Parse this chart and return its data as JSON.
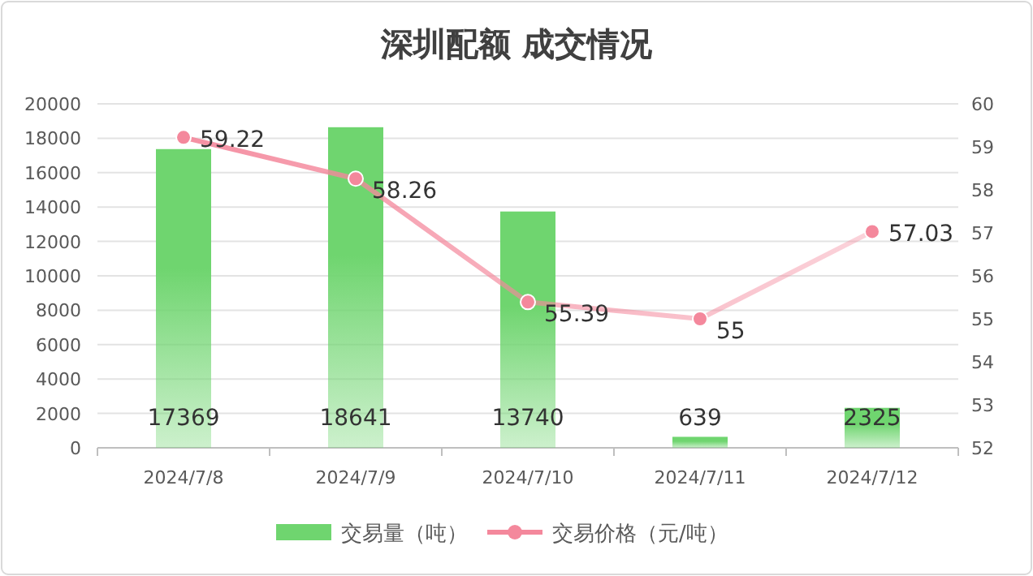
{
  "chart_data": {
    "type": "bar",
    "title": "深圳配额 成交情况",
    "categories": [
      "2024/7/8",
      "2024/7/9",
      "2024/7/10",
      "2024/7/11",
      "2024/7/12"
    ],
    "series": [
      {
        "name": "交易量（吨）",
        "color": "#6fd56f",
        "values": [
          17369,
          18641,
          13740,
          639,
          2325
        ]
      },
      {
        "name": "交易价格（元/吨）",
        "type": "line",
        "axis": "y2",
        "color": "#f4889c",
        "values": [
          59.22,
          58.26,
          55.39,
          55,
          57.03
        ]
      }
    ],
    "ylim": [
      0,
      20000
    ],
    "yticks": [
      0,
      2000,
      4000,
      6000,
      8000,
      10000,
      12000,
      14000,
      16000,
      18000,
      20000
    ],
    "y2lim": [
      52,
      60
    ],
    "y2ticks": [
      52,
      53,
      54,
      55,
      56,
      57,
      58,
      59,
      60
    ],
    "grid": "y",
    "legend": "bottom",
    "marker": "circle",
    "data_labels": true
  }
}
